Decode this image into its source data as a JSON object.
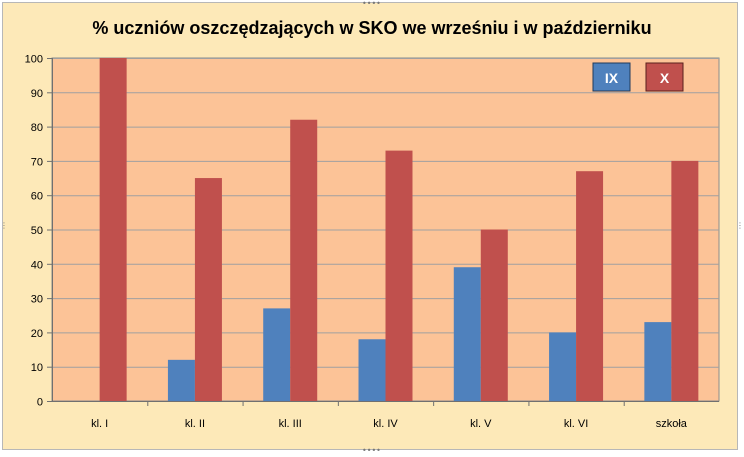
{
  "chart_data": {
    "type": "bar",
    "title": "% uczniów oszczędzających w SKO we wrześniu i w październiku",
    "categories": [
      "kl. I",
      "kl. II",
      "kl. III",
      "kl. IV",
      "kl. V",
      "kl. VI",
      "szkoła"
    ],
    "series": [
      {
        "name": "IX",
        "values": [
          0,
          12,
          27,
          18,
          39,
          20,
          23
        ]
      },
      {
        "name": "X",
        "values": [
          100,
          65,
          82,
          73,
          50,
          67,
          70
        ]
      }
    ],
    "ylim": [
      0,
      100
    ],
    "yticks": [
      0,
      10,
      20,
      30,
      40,
      50,
      60,
      70,
      80,
      90,
      100
    ],
    "grid": true,
    "legend_position": "top-right",
    "colors": {
      "series": [
        "#4f81bd",
        "#c0504d"
      ],
      "plot_background": "#fcc397",
      "chart_background": "#fde9b8",
      "gridline": "#a0a0a0",
      "legend_text": "#ffffff"
    }
  }
}
